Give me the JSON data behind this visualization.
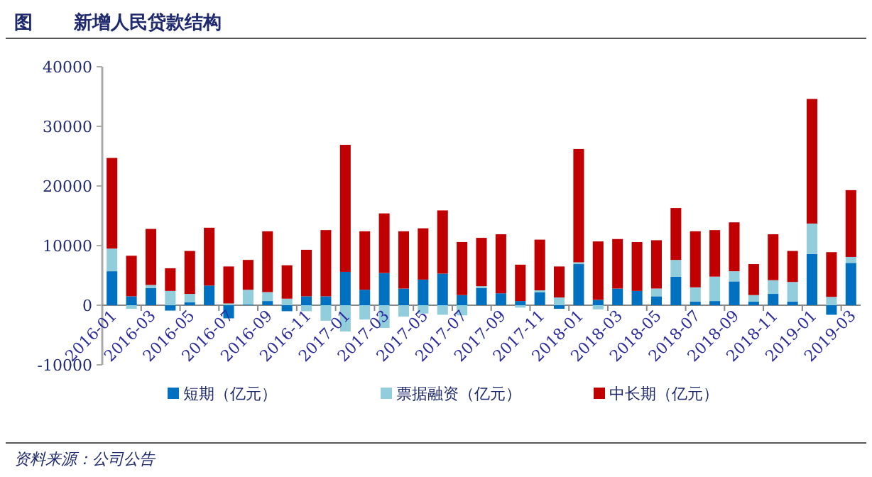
{
  "chart_data": {
    "type": "bar",
    "stacked": true,
    "title": "新增人民贷款结构",
    "annotations": [
      "图",
      "资料来源：公司公告"
    ],
    "categories": [
      "2016-01",
      null,
      "2016-03",
      null,
      "2016-05",
      null,
      "2016-07",
      null,
      "2016-09",
      null,
      "2016-11",
      null,
      "2017-01",
      null,
      "2017-03",
      null,
      "2017-05",
      null,
      "2017-07",
      null,
      "2017-09",
      null,
      "2017-11",
      null,
      "2018-01",
      null,
      "2018-03",
      null,
      "2018-05",
      null,
      "2018-07",
      null,
      "2018-09",
      null,
      "2018-11",
      null,
      "2019-01",
      null,
      "2019-03"
    ],
    "series": [
      {
        "name": "短期（亿元）",
        "color": "#0070c0",
        "values": [
          5700,
          1500,
          2900,
          -900,
          500,
          3300,
          -2200,
          100,
          700,
          -1000,
          1500,
          1500,
          5600,
          2600,
          5400,
          2800,
          4300,
          5300,
          1700,
          2900,
          2000,
          700,
          2200,
          -600,
          6900,
          900,
          2800,
          2400,
          1500,
          4800,
          600,
          700,
          4000,
          600,
          1900,
          600,
          8600,
          -1600,
          7100
        ]
      },
      {
        "name": "票据融资（亿元）",
        "color": "#92cddc",
        "values": [
          3800,
          -600,
          500,
          2400,
          1400,
          0,
          300,
          2500,
          1500,
          1100,
          -1000,
          -2600,
          -4400,
          -2400,
          -3800,
          -1900,
          -1400,
          -1600,
          -1700,
          300,
          0,
          -400,
          300,
          1300,
          300,
          -700,
          0,
          0,
          1300,
          2800,
          2400,
          4100,
          1700,
          1100,
          2300,
          3300,
          5100,
          1400,
          1000
        ]
      },
      {
        "name": "中长期（亿元）",
        "color": "#c00000",
        "values": [
          15200,
          6800,
          9400,
          3800,
          7200,
          9700,
          6200,
          5000,
          10200,
          5600,
          7800,
          11100,
          21300,
          9800,
          10000,
          9600,
          8600,
          10600,
          8900,
          8100,
          9900,
          6100,
          8500,
          5200,
          19000,
          9800,
          8300,
          8200,
          8100,
          8700,
          9400,
          7800,
          8200,
          5200,
          7700,
          5200,
          20900,
          7500,
          11200
        ]
      }
    ],
    "ylim": [
      -10000,
      40000
    ],
    "yticks": [
      -10000,
      0,
      10000,
      20000,
      30000,
      40000
    ],
    "grid": false,
    "legend": "bottom"
  }
}
